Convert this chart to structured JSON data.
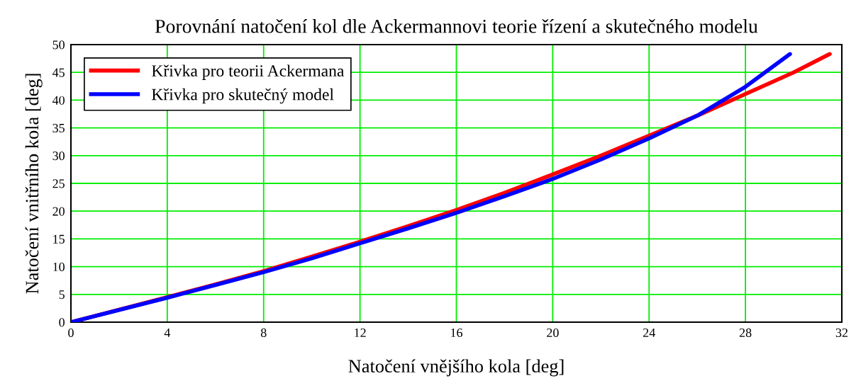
{
  "chart_data": {
    "type": "line",
    "title": "Porovnání natočení kol dle Ackermannovi teorie řízení a skutečného modelu",
    "xlabel": "Natočení vnějšího kola [deg]",
    "ylabel": "Natočení vnitřního kola [deg]",
    "xlim": [
      0,
      32
    ],
    "xticks": [
      0,
      4,
      8,
      12,
      16,
      20,
      24,
      28,
      32
    ],
    "ylim": [
      0,
      50
    ],
    "yticks": [
      0,
      5,
      10,
      15,
      20,
      25,
      30,
      35,
      40,
      45,
      50
    ],
    "grid": true,
    "legend": "top left",
    "line_style": "solid",
    "marker": "none",
    "series": [
      {
        "name": "Křivka pro teorii Ackermana",
        "color": "#ff0000",
        "x": [
          0,
          4,
          6,
          8,
          10,
          12,
          14,
          16,
          18,
          20,
          22,
          24,
          26,
          28,
          30,
          31.5
        ],
        "values": [
          0,
          4.5,
          6.8,
          9.2,
          11.8,
          14.5,
          17.3,
          20.2,
          23.3,
          26.6,
          30.0,
          33.6,
          37.2,
          41.1,
          45.0,
          48.3
        ]
      },
      {
        "name": "Křivka pro skutečný model",
        "color": "#0000ff",
        "x": [
          0,
          2,
          4,
          6,
          8,
          10,
          12,
          14,
          16,
          18,
          20,
          22,
          24,
          26,
          28,
          29.85
        ],
        "values": [
          0,
          2.2,
          4.4,
          6.7,
          9.0,
          11.5,
          14.2,
          16.9,
          19.7,
          22.7,
          25.8,
          29.3,
          33.1,
          37.2,
          42.4,
          48.3
        ]
      }
    ]
  }
}
